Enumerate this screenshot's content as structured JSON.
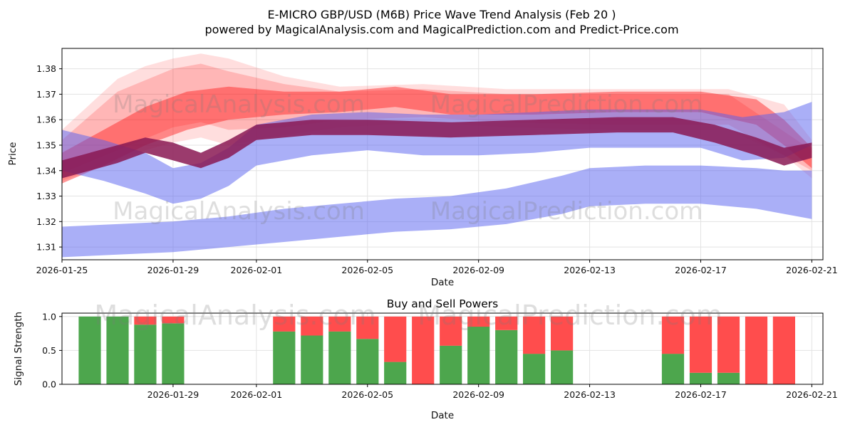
{
  "header": {
    "title_line1": "E-MICRO GBP/USD (M6B) Price Wave Trend Analysis (Feb 20 )",
    "title_line2": "powered by MagicalAnalysis.com and MagicalPrediction.com and Predict-Price.com"
  },
  "watermarks": {
    "text1": "MagicalAnalysis.com",
    "text2": "MagicalPrediction.com"
  },
  "chart_data": [
    {
      "type": "area",
      "name": "price-wave-trend",
      "xlabel": "Date",
      "ylabel": "Price",
      "xlim_days": [
        0,
        27.4
      ],
      "ylim": [
        1.305,
        1.388
      ],
      "y_ticks": [
        1.31,
        1.32,
        1.33,
        1.34,
        1.35,
        1.36,
        1.37,
        1.38
      ],
      "x_ticks": [
        {
          "day": 0,
          "label": "2026-01-25"
        },
        {
          "day": 4,
          "label": "2026-01-29"
        },
        {
          "day": 7,
          "label": "2026-02-01"
        },
        {
          "day": 11,
          "label": "2026-02-05"
        },
        {
          "day": 15,
          "label": "2026-02-09"
        },
        {
          "day": 19,
          "label": "2026-02-13"
        },
        {
          "day": 23,
          "label": "2026-02-17"
        },
        {
          "day": 27,
          "label": "2026-02-21"
        }
      ],
      "bands": [
        {
          "name": "forecast-fan-outer",
          "color": "#ff0000",
          "opacity": 0.13,
          "x": [
            0,
            1,
            2,
            3,
            4,
            5,
            6,
            8,
            10,
            13,
            16,
            20,
            24,
            26,
            27
          ],
          "upper": [
            1.356,
            1.366,
            1.376,
            1.381,
            1.384,
            1.386,
            1.384,
            1.377,
            1.373,
            1.374,
            1.372,
            1.372,
            1.372,
            1.366,
            1.352
          ],
          "lower": [
            1.336,
            1.34,
            1.344,
            1.348,
            1.351,
            1.353,
            1.35,
            1.354,
            1.357,
            1.359,
            1.357,
            1.356,
            1.356,
            1.346,
            1.337
          ]
        },
        {
          "name": "forecast-fan-mid",
          "color": "#ff0000",
          "opacity": 0.18,
          "x": [
            0,
            2,
            4,
            5,
            6,
            8,
            10,
            13,
            16,
            20,
            24,
            27
          ],
          "upper": [
            1.352,
            1.371,
            1.38,
            1.382,
            1.379,
            1.374,
            1.371,
            1.372,
            1.37,
            1.37,
            1.37,
            1.348
          ],
          "lower": [
            1.339,
            1.348,
            1.357,
            1.359,
            1.356,
            1.357,
            1.36,
            1.361,
            1.359,
            1.358,
            1.358,
            1.34
          ]
        },
        {
          "name": "forecast-fan-inner",
          "color": "#ff1a1a",
          "opacity": 0.45,
          "x": [
            0,
            1.5,
            3,
            4.5,
            6,
            8,
            10,
            12,
            14,
            17,
            20,
            23,
            25,
            26,
            27
          ],
          "upper": [
            1.347,
            1.356,
            1.365,
            1.371,
            1.373,
            1.371,
            1.371,
            1.373,
            1.37,
            1.37,
            1.371,
            1.371,
            1.368,
            1.36,
            1.349
          ],
          "lower": [
            1.335,
            1.342,
            1.35,
            1.356,
            1.36,
            1.362,
            1.363,
            1.365,
            1.362,
            1.362,
            1.363,
            1.363,
            1.358,
            1.35,
            1.341
          ]
        },
        {
          "name": "support-band-lower",
          "color": "#5560f0",
          "opacity": 0.5,
          "x": [
            0,
            2,
            4,
            6,
            8,
            10,
            12,
            14,
            16,
            18,
            19,
            21,
            23,
            25,
            26,
            27
          ],
          "upper": [
            1.318,
            1.319,
            1.32,
            1.322,
            1.325,
            1.327,
            1.329,
            1.33,
            1.333,
            1.338,
            1.341,
            1.342,
            1.342,
            1.341,
            1.34,
            1.34
          ],
          "lower": [
            1.306,
            1.307,
            1.308,
            1.31,
            1.312,
            1.314,
            1.316,
            1.317,
            1.319,
            1.323,
            1.326,
            1.327,
            1.327,
            1.325,
            1.323,
            1.321
          ]
        },
        {
          "name": "support-band-upper",
          "color": "#5560f0",
          "opacity": 0.5,
          "x": [
            0,
            1.5,
            3,
            4,
            5,
            6,
            7,
            9,
            11,
            13,
            15,
            17,
            19,
            21,
            23,
            24.5,
            26,
            27
          ],
          "upper": [
            1.356,
            1.352,
            1.347,
            1.341,
            1.343,
            1.349,
            1.358,
            1.362,
            1.363,
            1.362,
            1.362,
            1.363,
            1.364,
            1.364,
            1.364,
            1.361,
            1.363,
            1.367
          ],
          "lower": [
            1.34,
            1.336,
            1.331,
            1.327,
            1.329,
            1.334,
            1.342,
            1.346,
            1.348,
            1.346,
            1.346,
            1.347,
            1.349,
            1.349,
            1.349,
            1.344,
            1.345,
            1.35
          ]
        },
        {
          "name": "trend-core-band",
          "color": "#8a1953",
          "opacity": 0.85,
          "x": [
            0,
            1,
            2,
            3,
            4,
            5,
            6,
            7,
            9,
            11,
            14,
            17,
            20,
            22,
            23.5,
            25,
            26,
            27
          ],
          "upper": [
            1.344,
            1.347,
            1.35,
            1.353,
            1.351,
            1.347,
            1.352,
            1.358,
            1.36,
            1.36,
            1.359,
            1.36,
            1.361,
            1.361,
            1.358,
            1.353,
            1.349,
            1.351
          ],
          "lower": [
            1.337,
            1.34,
            1.343,
            1.347,
            1.344,
            1.341,
            1.345,
            1.352,
            1.354,
            1.354,
            1.353,
            1.354,
            1.355,
            1.355,
            1.351,
            1.346,
            1.342,
            1.345
          ]
        }
      ]
    },
    {
      "type": "bar",
      "name": "buy-sell-powers",
      "title": "Buy and Sell Powers",
      "xlabel": "Date",
      "ylabel": "Signal Strength",
      "xlim_days": [
        0,
        27.4
      ],
      "ylim": [
        0,
        1.05
      ],
      "y_ticks": [
        0,
        0.5,
        1
      ],
      "x_ticks": [
        {
          "day": 4,
          "label": "2026-01-29"
        },
        {
          "day": 7,
          "label": "2026-02-01"
        },
        {
          "day": 11,
          "label": "2026-02-05"
        },
        {
          "day": 15,
          "label": "2026-02-09"
        },
        {
          "day": 19,
          "label": "2026-02-13"
        },
        {
          "day": 23,
          "label": "2026-02-17"
        },
        {
          "day": 27,
          "label": "2026-02-21"
        }
      ],
      "bar_width_days": 0.8,
      "series_colors": {
        "buy": "#4da64d",
        "sell": "#ff4d4d"
      },
      "bars": [
        {
          "date": "2026-01-26",
          "day": 1,
          "buy": 1.0,
          "sell": 0.0
        },
        {
          "date": "2026-01-27",
          "day": 2,
          "buy": 1.0,
          "sell": 0.0
        },
        {
          "date": "2026-01-28",
          "day": 3,
          "buy": 0.88,
          "sell": 0.12
        },
        {
          "date": "2026-01-29",
          "day": 4,
          "buy": 0.9,
          "sell": 0.1
        },
        {
          "date": "2026-02-02",
          "day": 8,
          "buy": 0.78,
          "sell": 0.22
        },
        {
          "date": "2026-02-03",
          "day": 9,
          "buy": 0.72,
          "sell": 0.28
        },
        {
          "date": "2026-02-04",
          "day": 10,
          "buy": 0.78,
          "sell": 0.22
        },
        {
          "date": "2026-02-05",
          "day": 11,
          "buy": 0.67,
          "sell": 0.33
        },
        {
          "date": "2026-02-06",
          "day": 12,
          "buy": 0.33,
          "sell": 0.67
        },
        {
          "date": "2026-02-07",
          "day": 13,
          "buy": 0.0,
          "sell": 1.0
        },
        {
          "date": "2026-02-08",
          "day": 14,
          "buy": 0.57,
          "sell": 0.43
        },
        {
          "date": "2026-02-09",
          "day": 15,
          "buy": 0.85,
          "sell": 0.15
        },
        {
          "date": "2026-02-10",
          "day": 16,
          "buy": 0.8,
          "sell": 0.2
        },
        {
          "date": "2026-02-11",
          "day": 17,
          "buy": 0.45,
          "sell": 0.55
        },
        {
          "date": "2026-02-12",
          "day": 18,
          "buy": 0.5,
          "sell": 0.5
        },
        {
          "date": "2026-02-16",
          "day": 22,
          "buy": 0.45,
          "sell": 0.55
        },
        {
          "date": "2026-02-17",
          "day": 23,
          "buy": 0.17,
          "sell": 0.83
        },
        {
          "date": "2026-02-18",
          "day": 24,
          "buy": 0.17,
          "sell": 0.83
        },
        {
          "date": "2026-02-19",
          "day": 25,
          "buy": 0.0,
          "sell": 1.0
        },
        {
          "date": "2026-02-20",
          "day": 26,
          "buy": 0.0,
          "sell": 1.0
        }
      ]
    }
  ]
}
